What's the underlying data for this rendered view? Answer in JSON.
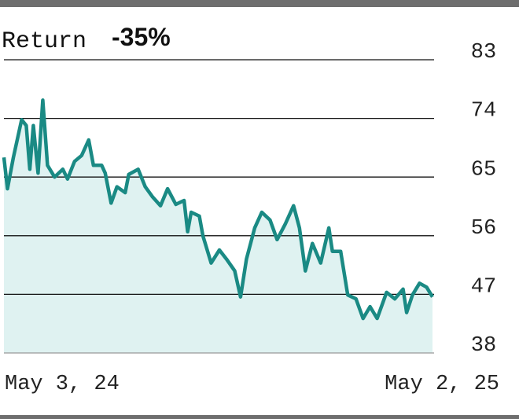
{
  "chart_data": {
    "type": "line",
    "title": "Return",
    "annotation": "-35%",
    "x": [
      "2024-05-03",
      "2024-05-06",
      "2024-05-11",
      "2024-05-18",
      "2024-05-22",
      "2024-05-25",
      "2024-05-28",
      "2024-06-01",
      "2024-06-05",
      "2024-06-09",
      "2024-06-15",
      "2024-06-22",
      "2024-06-26",
      "2024-07-02",
      "2024-07-08",
      "2024-07-14",
      "2024-07-18",
      "2024-07-25",
      "2024-07-28",
      "2024-08-02",
      "2024-08-07",
      "2024-08-14",
      "2024-08-17",
      "2024-08-25",
      "2024-08-31",
      "2024-09-06",
      "2024-09-13",
      "2024-09-19",
      "2024-09-26",
      "2024-10-03",
      "2024-10-06",
      "2024-10-09",
      "2024-10-16",
      "2024-10-19",
      "2024-10-26",
      "2024-11-02",
      "2024-11-08",
      "2024-11-15",
      "2024-11-20",
      "2024-11-25",
      "2024-12-02",
      "2024-12-08",
      "2024-12-15",
      "2024-12-21",
      "2024-12-28",
      "2025-01-04",
      "2025-01-09",
      "2025-01-14",
      "2025-01-20",
      "2025-01-27",
      "2025-02-03",
      "2025-02-06",
      "2025-02-13",
      "2025-02-19",
      "2025-02-26",
      "2025-03-04",
      "2025-03-10",
      "2025-03-16",
      "2025-03-24",
      "2025-03-31",
      "2025-04-07",
      "2025-04-10",
      "2025-04-15",
      "2025-04-21",
      "2025-04-27",
      "2025-05-02"
    ],
    "series": [
      {
        "name": "Return",
        "color": "#1a8a84",
        "fill": "#dff2f1",
        "values": [
          68.0,
          63.2,
          68.0,
          73.8,
          72.9,
          66.2,
          72.9,
          65.6,
          76.8,
          66.8,
          65.0,
          66.2,
          64.7,
          67.4,
          68.3,
          70.7,
          66.8,
          66.8,
          65.6,
          61.0,
          63.5,
          62.6,
          65.4,
          66.2,
          63.5,
          62.0,
          60.6,
          63.2,
          60.8,
          61.4,
          56.6,
          59.6,
          59.0,
          56.0,
          51.8,
          53.8,
          52.4,
          50.6,
          46.6,
          52.4,
          57.2,
          59.6,
          58.4,
          55.4,
          57.8,
          60.6,
          57.2,
          50.6,
          54.8,
          51.8,
          57.2,
          53.6,
          53.6,
          46.9,
          46.3,
          43.3,
          45.1,
          43.3,
          47.3,
          46.3,
          47.8,
          44.2,
          46.9,
          48.7,
          48.1,
          46.6
        ]
      }
    ],
    "xlim": [
      "2024-05-03",
      "2025-05-02"
    ],
    "xticks": [
      {
        "value": "2024-05-03",
        "label": "May 3, 24"
      },
      {
        "value": "2025-05-02",
        "label": "May 2, 25"
      }
    ],
    "ylim": [
      38,
      83
    ],
    "yticks": [
      38,
      47,
      56,
      65,
      74,
      83
    ],
    "grid": true
  }
}
